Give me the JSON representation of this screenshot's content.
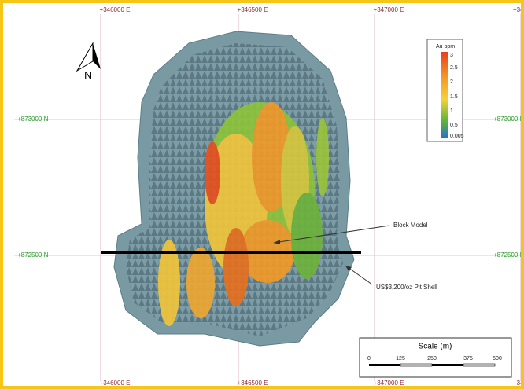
{
  "grid_labels": {
    "top": [
      "+346000 E",
      "+346500 E",
      "+347000 E",
      "+347"
    ],
    "bottom": [
      "+346000 E",
      "+346500 E",
      "+347000 E",
      "+347"
    ],
    "left": [
      "+873000 N",
      "+872500 N"
    ],
    "right": [
      "+873000 N",
      "+872500 N"
    ]
  },
  "north_arrow": "N",
  "legend": {
    "title": "Au ppm",
    "labels": [
      "3",
      "2.5",
      "2",
      "1.5",
      "1",
      "0.5",
      "0.005"
    ]
  },
  "annotations": [
    "Block Model",
    "US$3,200/oz Pit Shell"
  ],
  "scale": {
    "title": "Scale (m)",
    "labels": [
      "0",
      "125",
      "250",
      "375",
      "500"
    ]
  }
}
